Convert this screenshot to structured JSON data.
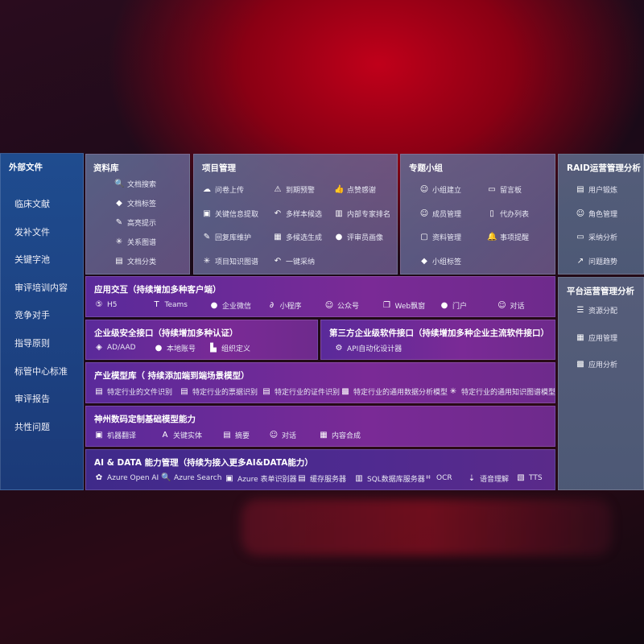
{
  "sidebar": {
    "title": "外部文件",
    "items": [
      "临床文献",
      "发补文件",
      "关键字池",
      "审评培训内容",
      "竞争对手",
      "指导原则",
      "标管中心标准",
      "审评报告",
      "共性问题"
    ]
  },
  "library": {
    "title": "资料库",
    "items": [
      {
        "icon": "doc-search-icon",
        "label": "文档搜索"
      },
      {
        "icon": "tag-icon",
        "label": "文档标签"
      },
      {
        "icon": "pen-icon",
        "label": "高亮提示"
      },
      {
        "icon": "graph-icon",
        "label": "关系图谱"
      },
      {
        "icon": "doc-category-icon",
        "label": "文档分类"
      }
    ]
  },
  "project": {
    "title": "项目管理",
    "items": [
      {
        "icon": "cloud-upload-icon",
        "label": "问卷上传"
      },
      {
        "icon": "alarm-icon",
        "label": "到期预警"
      },
      {
        "icon": "thumbs-up-icon",
        "label": "点赞感谢"
      },
      {
        "icon": "extract-icon",
        "label": "关键信息提取"
      },
      {
        "icon": "reply-icon",
        "label": "多样本候选"
      },
      {
        "icon": "rank-icon",
        "label": "内部专家排名"
      },
      {
        "icon": "edit-icon",
        "label": "回复库维护"
      },
      {
        "icon": "puzzle-icon",
        "label": "多候选生成"
      },
      {
        "icon": "user-icon",
        "label": "评审员画像"
      },
      {
        "icon": "graph-icon",
        "label": "项目知识图谱"
      },
      {
        "icon": "reply-icon",
        "label": "一键采纳"
      }
    ]
  },
  "group": {
    "title": "专题小组",
    "items": [
      {
        "icon": "group-icon",
        "label": "小组建立"
      },
      {
        "icon": "bbs-icon",
        "label": "留言板"
      },
      {
        "icon": "member-icon",
        "label": "成员管理"
      },
      {
        "icon": "clipboard-icon",
        "label": "代办列表"
      },
      {
        "icon": "folder-icon",
        "label": "资料管理"
      },
      {
        "icon": "bell-icon",
        "label": "事项提醒"
      },
      {
        "icon": "tag-icon",
        "label": "小组标签"
      }
    ]
  },
  "raid": {
    "title": "RAID运营管理分析",
    "items": [
      {
        "icon": "id-card-icon",
        "label": "用户锻炼"
      },
      {
        "icon": "users-icon",
        "label": "角色管理"
      },
      {
        "icon": "qa-icon",
        "label": "采纳分析"
      },
      {
        "icon": "trend-icon",
        "label": "问题趋势"
      }
    ]
  },
  "platform": {
    "title": "平台运营管理分析",
    "items": [
      {
        "icon": "checklist-icon",
        "label": "资源分配"
      },
      {
        "icon": "apps-icon",
        "label": "应用管理"
      },
      {
        "icon": "chart-icon",
        "label": "应用分析"
      }
    ]
  },
  "app": {
    "title": "应用交互（持续增加多种客户端）",
    "items": [
      {
        "icon": "html5-icon",
        "label": "H5"
      },
      {
        "icon": "teams-icon",
        "label": "Teams"
      },
      {
        "icon": "wecom-icon",
        "label": "企业微信"
      },
      {
        "icon": "miniprogram-icon",
        "label": "小程序"
      },
      {
        "icon": "official-account-icon",
        "label": "公众号"
      },
      {
        "icon": "window-icon",
        "label": "Web飘窗"
      },
      {
        "icon": "portal-icon",
        "label": "门户"
      },
      {
        "icon": "chat-icon",
        "label": "对话"
      }
    ]
  },
  "security": {
    "title": "企业级安全接口（持续增加多种认证）",
    "items": [
      {
        "icon": "ad-icon",
        "label": "AD/AAD"
      },
      {
        "icon": "account-icon",
        "label": "本地账号"
      },
      {
        "icon": "org-icon",
        "label": "组织定义"
      }
    ]
  },
  "thirdparty": {
    "title": "第三方企业级软件接口（持续增加多种企业主流软件接口）",
    "items": [
      {
        "icon": "gear-icon",
        "label": "API自动化设计器"
      }
    ]
  },
  "industry": {
    "title": "产业模型库（ 持续添加端到端场景模型）",
    "items": [
      {
        "icon": "doc-icon",
        "label": "特定行业的文件识别"
      },
      {
        "icon": "receipt-icon",
        "label": "特定行业的票据识别"
      },
      {
        "icon": "id-card-icon",
        "label": "特定行业的证件识别"
      },
      {
        "icon": "analysis-icon",
        "label": "特定行业的通用数据分析模型"
      },
      {
        "icon": "graph-icon",
        "label": "特定行业的通用知识图谱模型"
      }
    ]
  },
  "base": {
    "title": "神州数码定制基础模型能力",
    "items": [
      {
        "icon": "translate-icon",
        "label": "机器翻译"
      },
      {
        "icon": "entity-icon",
        "label": "关键实体"
      },
      {
        "icon": "summary-icon",
        "label": "摘要"
      },
      {
        "icon": "chat-icon",
        "label": "对话"
      },
      {
        "icon": "compose-icon",
        "label": "内容合成"
      }
    ]
  },
  "aidata": {
    "title": "AI & DATA 能力管理（持续为接入更多AI&DATA能力）",
    "items": [
      {
        "icon": "openai-icon",
        "label": "Azure Open AI"
      },
      {
        "icon": "search-icon",
        "label": "Azure Search"
      },
      {
        "icon": "form-icon",
        "label": "Azure 表单识别器"
      },
      {
        "icon": "cache-icon",
        "label": "缓存服务器"
      },
      {
        "icon": "database-icon",
        "label": "SQL数据库服务器"
      },
      {
        "icon": "ocr-icon",
        "label": "OCR"
      },
      {
        "icon": "speech-icon",
        "label": "语音理解"
      },
      {
        "icon": "tts-icon",
        "label": "TTS"
      }
    ]
  }
}
